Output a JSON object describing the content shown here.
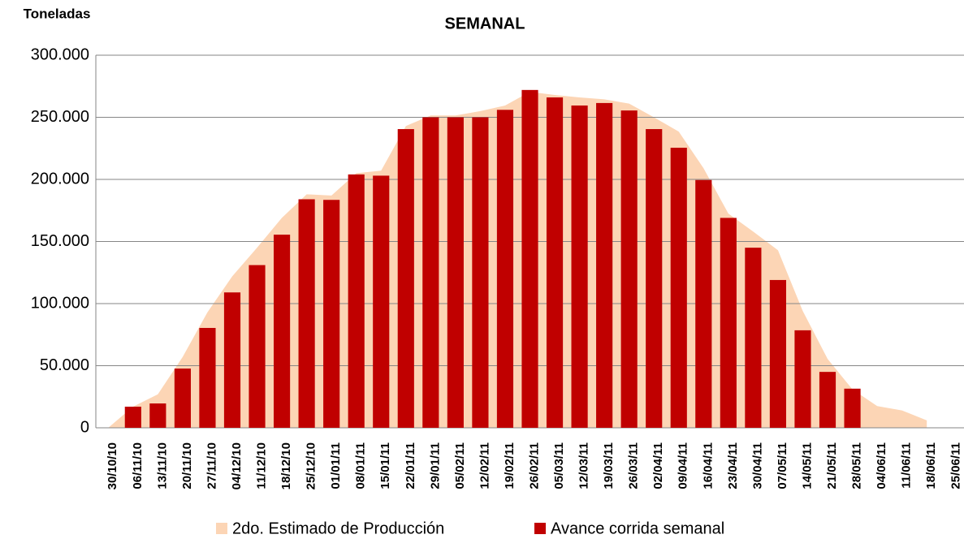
{
  "chart_data": {
    "type": "bar+area",
    "title": "SEMANAL",
    "y_label": "Toneladas",
    "categories": [
      "30/10/10",
      "06/11/10",
      "13/11/10",
      "20/11/10",
      "27/11/10",
      "04/12/10",
      "11/12/10",
      "18/12/10",
      "25/12/10",
      "01/01/11",
      "08/01/11",
      "15/01/11",
      "22/01/11",
      "29/01/11",
      "05/02/11",
      "12/02/11",
      "19/02/11",
      "26/02/11",
      "05/03/11",
      "12/03/11",
      "19/03/11",
      "26/03/11",
      "02/04/11",
      "09/04/11",
      "16/04/11",
      "23/04/11",
      "30/04/11",
      "07/05/11",
      "14/05/11",
      "21/05/11",
      "28/05/11",
      "04/06/11",
      "11/06/11",
      "18/06/11",
      "25/06/11"
    ],
    "series": [
      {
        "name": "2do. Estimado de Producción",
        "type": "area",
        "color": "#fcd5b5",
        "values": [
          0,
          17000,
          27000,
          57000,
          93000,
          122000,
          145000,
          169000,
          188000,
          187000,
          205000,
          207000,
          243000,
          251500,
          251500,
          255000,
          259500,
          270500,
          268000,
          266000,
          264500,
          261000,
          250000,
          238500,
          209000,
          172500,
          158000,
          143000,
          94000,
          55500,
          31000,
          17500,
          14000,
          6000,
          null
        ]
      },
      {
        "name": "Avance corrida semanal",
        "type": "bar",
        "color": "#c00000",
        "values": [
          null,
          17000,
          19600,
          47700,
          80400,
          109000,
          131000,
          155500,
          184000,
          183500,
          204000,
          203000,
          240500,
          250000,
          250000,
          250000,
          256000,
          272000,
          266000,
          259500,
          261500,
          255500,
          240500,
          225500,
          199500,
          169000,
          145000,
          119000,
          78500,
          45000,
          31500,
          null,
          null,
          null,
          null
        ]
      }
    ],
    "ylim": [
      0,
      300000
    ],
    "yticks": [
      0,
      {
        "value": 50000,
        "label": "50.000"
      },
      {
        "value": 100000,
        "label": "100.000"
      },
      {
        "value": 150000,
        "label": "150.000"
      },
      {
        "value": 200000,
        "label": "200.000"
      },
      {
        "value": 250000,
        "label": "250.000"
      },
      {
        "value": 300000,
        "label": "300.000"
      }
    ],
    "grid": true,
    "legend": "bottom"
  }
}
